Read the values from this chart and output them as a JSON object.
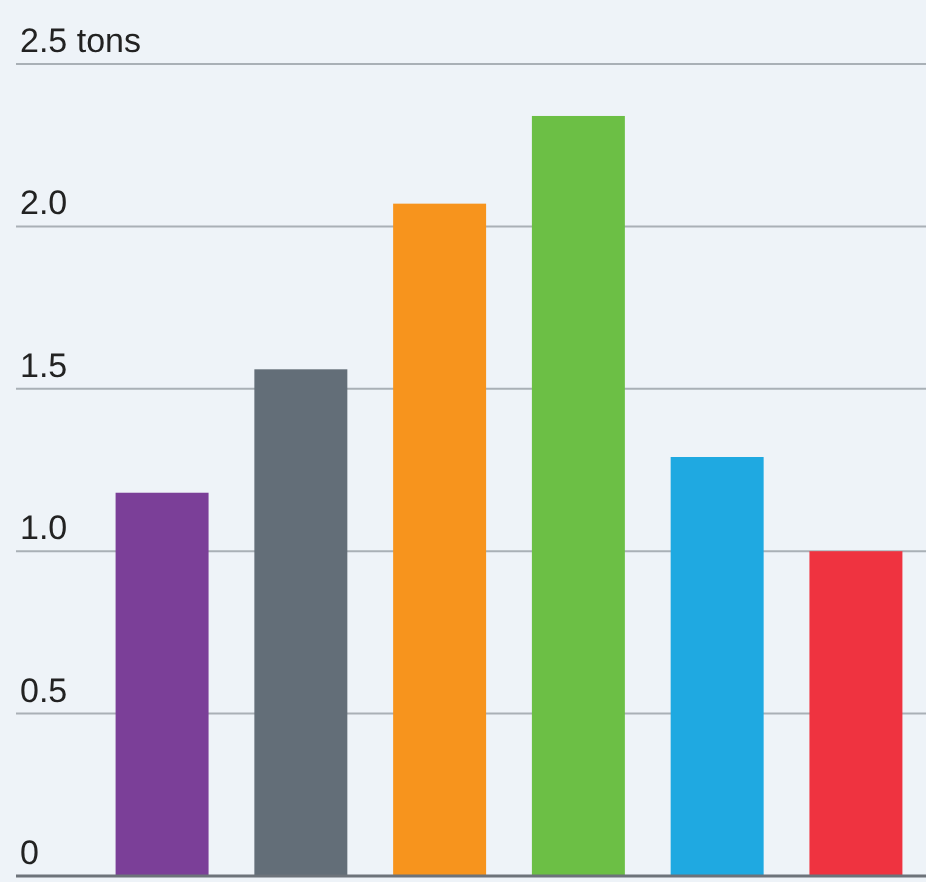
{
  "chart_data": {
    "type": "bar",
    "categories": [
      null,
      null,
      null,
      null,
      null,
      null
    ],
    "values": [
      1.18,
      1.56,
      2.07,
      2.34,
      1.29,
      1.0
    ],
    "colors": [
      "#7b3f98",
      "#636e78",
      "#f7941d",
      "#6cbf45",
      "#1fa9e1",
      "#ef3340"
    ],
    "ylim": [
      0,
      2.5
    ],
    "yticks": [
      0,
      0.5,
      {
        "value": 1,
        "label": "1.0"
      },
      1.5,
      {
        "value": 2,
        "label": "2.0"
      },
      {
        "value": 2.5,
        "label": "2.5 tons"
      }
    ],
    "grid": "y",
    "tick_labels": "y"
  }
}
